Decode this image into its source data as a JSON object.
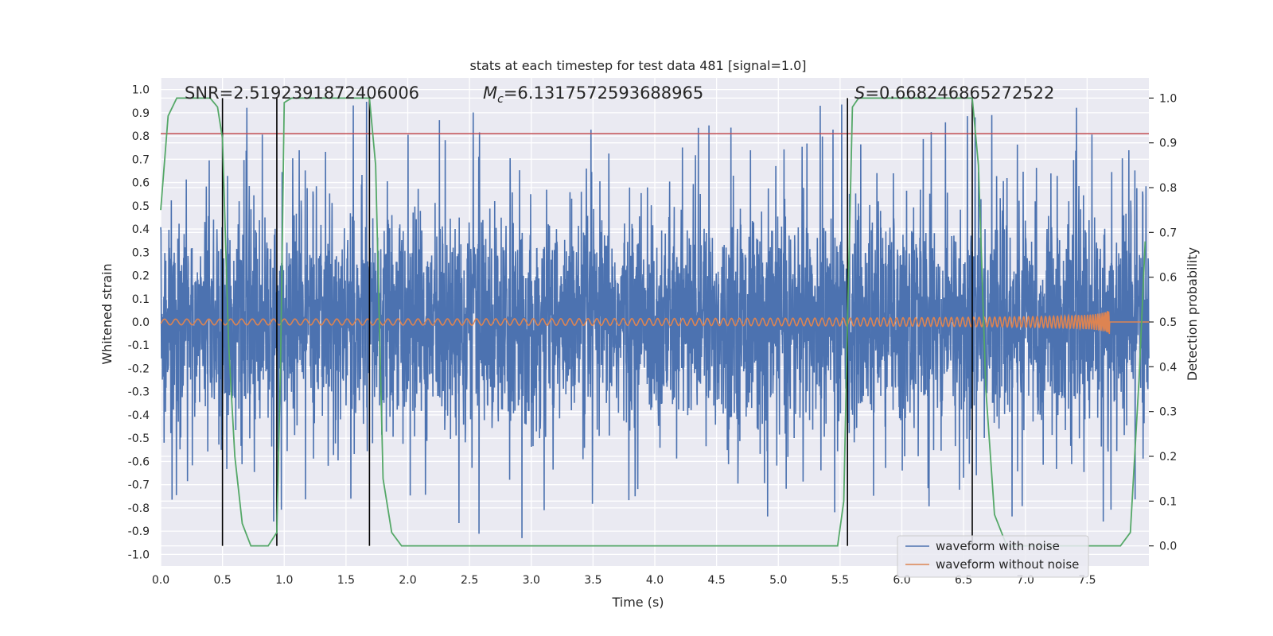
{
  "chart_data": {
    "type": "line",
    "title": "stats at each timestep for test data 481 [signal=1.0]",
    "xlabel": "Time (s)",
    "ylabel": "Whitened strain",
    "y2label": "Detection probability",
    "xlim": [
      0.0,
      8.0
    ],
    "ylim": [
      -1.05,
      1.05
    ],
    "y2lim": [
      -0.045,
      1.045
    ],
    "xticks": [
      "0.0",
      "0.5",
      "1.0",
      "1.5",
      "2.0",
      "2.5",
      "3.0",
      "3.5",
      "4.0",
      "4.5",
      "5.0",
      "5.5",
      "6.0",
      "6.5",
      "7.0",
      "7.5"
    ],
    "yticks": [
      "1.0",
      "0.9",
      "0.8",
      "0.7",
      "0.6",
      "0.5",
      "0.4",
      "0.3",
      "0.2",
      "0.1",
      "0.0",
      "-0.1",
      "-0.2",
      "-0.3",
      "-0.4",
      "-0.5",
      "-0.6",
      "-0.7",
      "-0.8",
      "-0.9",
      "-1.0"
    ],
    "y2ticks": [
      "1.0",
      "0.9",
      "0.8",
      "0.7",
      "0.6",
      "0.5",
      "0.4",
      "0.3",
      "0.2",
      "0.1",
      "0.0"
    ],
    "grid": true,
    "legend": {
      "position": "bottom-right",
      "entries": [
        {
          "label": "waveform with noise",
          "color": "#4c72b0"
        },
        {
          "label": "waveform without noise",
          "color": "#dd8452"
        }
      ]
    },
    "annotations": {
      "snr": "SNR=2.5192391872406006",
      "mc_symbol": "M",
      "mc_subscript": "c",
      "mc_value": "=6.1317572593688965",
      "s_symbol": "S",
      "s_value": "=0.668246865272522"
    },
    "threshold": {
      "y": 0.81,
      "color": "#c44e52"
    },
    "boundaries_x": [
      0.5,
      0.94,
      1.69,
      5.56,
      6.57
    ],
    "series": [
      {
        "name": "waveform with noise",
        "color": "#4c72b0",
        "style": "noise",
        "amplitude_typical": 0.42,
        "amplitude_max": 1.0
      },
      {
        "name": "waveform without noise",
        "color": "#dd8452",
        "style": "chirp",
        "t_start": 0.0,
        "t_merge": 7.68,
        "peak_amplitude": 0.055
      },
      {
        "color": "#55a868",
        "axis": "right",
        "x": [
          0.0,
          0.06,
          0.13,
          0.2,
          0.3,
          0.4,
          0.46,
          0.5,
          0.55,
          0.6,
          0.66,
          0.73,
          0.8,
          0.87,
          0.94,
          0.97,
          1.0,
          1.06,
          1.15,
          1.3,
          1.5,
          1.65,
          1.69,
          1.74,
          1.8,
          1.87,
          1.95,
          2.1,
          3.0,
          4.0,
          5.0,
          5.48,
          5.53,
          5.56,
          5.6,
          5.65,
          5.72,
          6.0,
          6.5,
          6.57,
          6.62,
          6.68,
          6.75,
          6.85,
          7.0,
          7.5,
          7.7,
          7.77,
          7.85,
          7.92,
          7.97
        ],
        "y": [
          0.75,
          0.96,
          1.0,
          1.0,
          1.0,
          1.0,
          0.98,
          0.91,
          0.45,
          0.2,
          0.05,
          0.0,
          0.0,
          0.0,
          0.03,
          0.4,
          0.99,
          1.0,
          1.0,
          1.0,
          1.0,
          1.0,
          1.0,
          0.85,
          0.15,
          0.03,
          0.0,
          0.0,
          0.0,
          0.0,
          0.0,
          0.0,
          0.1,
          0.5,
          0.98,
          1.0,
          1.0,
          1.0,
          1.0,
          1.0,
          0.85,
          0.35,
          0.07,
          0.0,
          0.0,
          0.0,
          0.0,
          0.0,
          0.03,
          0.37,
          0.68
        ]
      }
    ]
  }
}
